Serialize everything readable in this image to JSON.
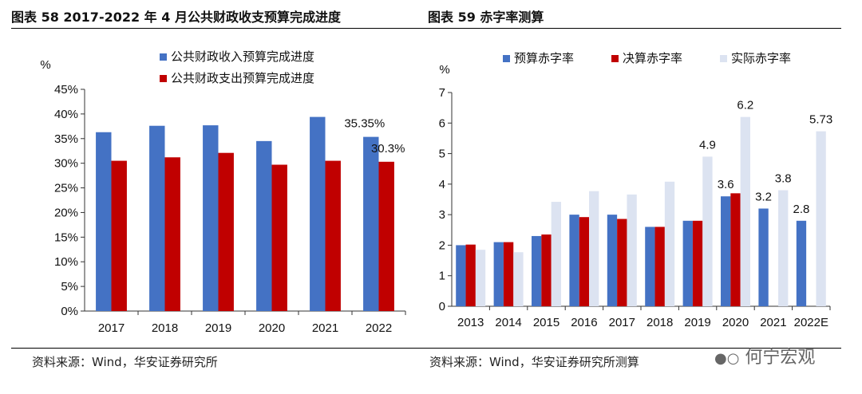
{
  "header": {
    "left_title": "图表 58 2017-2022 年 4 月公共财政收支预算完成进度",
    "right_title": "图表 59  赤字率测算"
  },
  "footer": {
    "left_source": "资料来源：Wind，华安证券研究所",
    "right_source": "资料来源：Wind，华安证券研究所测算",
    "watermark": "何宁宏观"
  },
  "chart_data": [
    {
      "type": "bar",
      "ylabel": "%",
      "categories": [
        "2017",
        "2018",
        "2019",
        "2020",
        "2021",
        "2022"
      ],
      "series": [
        {
          "name": "公共财政收入预算完成进度",
          "color": "#4472C4",
          "values": [
            36.3,
            37.6,
            37.7,
            34.5,
            39.4,
            35.35
          ]
        },
        {
          "name": "公共财政支出预算完成进度",
          "color": "#C00000",
          "values": [
            30.5,
            31.2,
            32.1,
            29.7,
            30.5,
            30.3
          ]
        }
      ],
      "yticks": [
        "0%",
        "5%",
        "10%",
        "15%",
        "20%",
        "25%",
        "30%",
        "35%",
        "40%",
        "45%"
      ],
      "ylim": [
        0,
        45
      ],
      "data_labels": [
        {
          "series": 0,
          "index": 5,
          "text": "35.35%"
        },
        {
          "series": 1,
          "index": 5,
          "text": "30.3%"
        }
      ],
      "legend": "top"
    },
    {
      "type": "bar",
      "ylabel": "%",
      "categories": [
        "2013",
        "2014",
        "2015",
        "2016",
        "2017",
        "2018",
        "2019",
        "2020",
        "2021",
        "2022E"
      ],
      "series": [
        {
          "name": "预算赤字率",
          "color": "#4472C4",
          "values": [
            2.0,
            2.1,
            2.3,
            3.0,
            3.0,
            2.6,
            2.8,
            3.6,
            3.2,
            2.8
          ]
        },
        {
          "name": "决算赤字率",
          "color": "#C00000",
          "values": [
            2.02,
            2.1,
            2.35,
            2.92,
            2.86,
            2.6,
            2.8,
            3.7,
            null,
            null
          ]
        },
        {
          "name": "实际赤字率",
          "color": "#DCE3F1",
          "values": [
            1.85,
            1.77,
            3.42,
            3.77,
            3.66,
            4.08,
            4.9,
            6.2,
            3.8,
            5.73
          ]
        }
      ],
      "yticks": [
        "0",
        "1",
        "2",
        "3",
        "4",
        "5",
        "6",
        "7"
      ],
      "ylim": [
        0,
        7
      ],
      "data_labels": [
        {
          "series": 2,
          "index": 6,
          "text": "4.9"
        },
        {
          "series": 2,
          "index": 7,
          "text": "6.2"
        },
        {
          "series": 0,
          "index": 7,
          "text": "3.6"
        },
        {
          "series": 0,
          "index": 8,
          "text": "3.2"
        },
        {
          "series": 2,
          "index": 8,
          "text": "3.8"
        },
        {
          "series": 0,
          "index": 9,
          "text": "2.8"
        },
        {
          "series": 2,
          "index": 9,
          "text": "5.73"
        }
      ],
      "legend": "top"
    }
  ]
}
